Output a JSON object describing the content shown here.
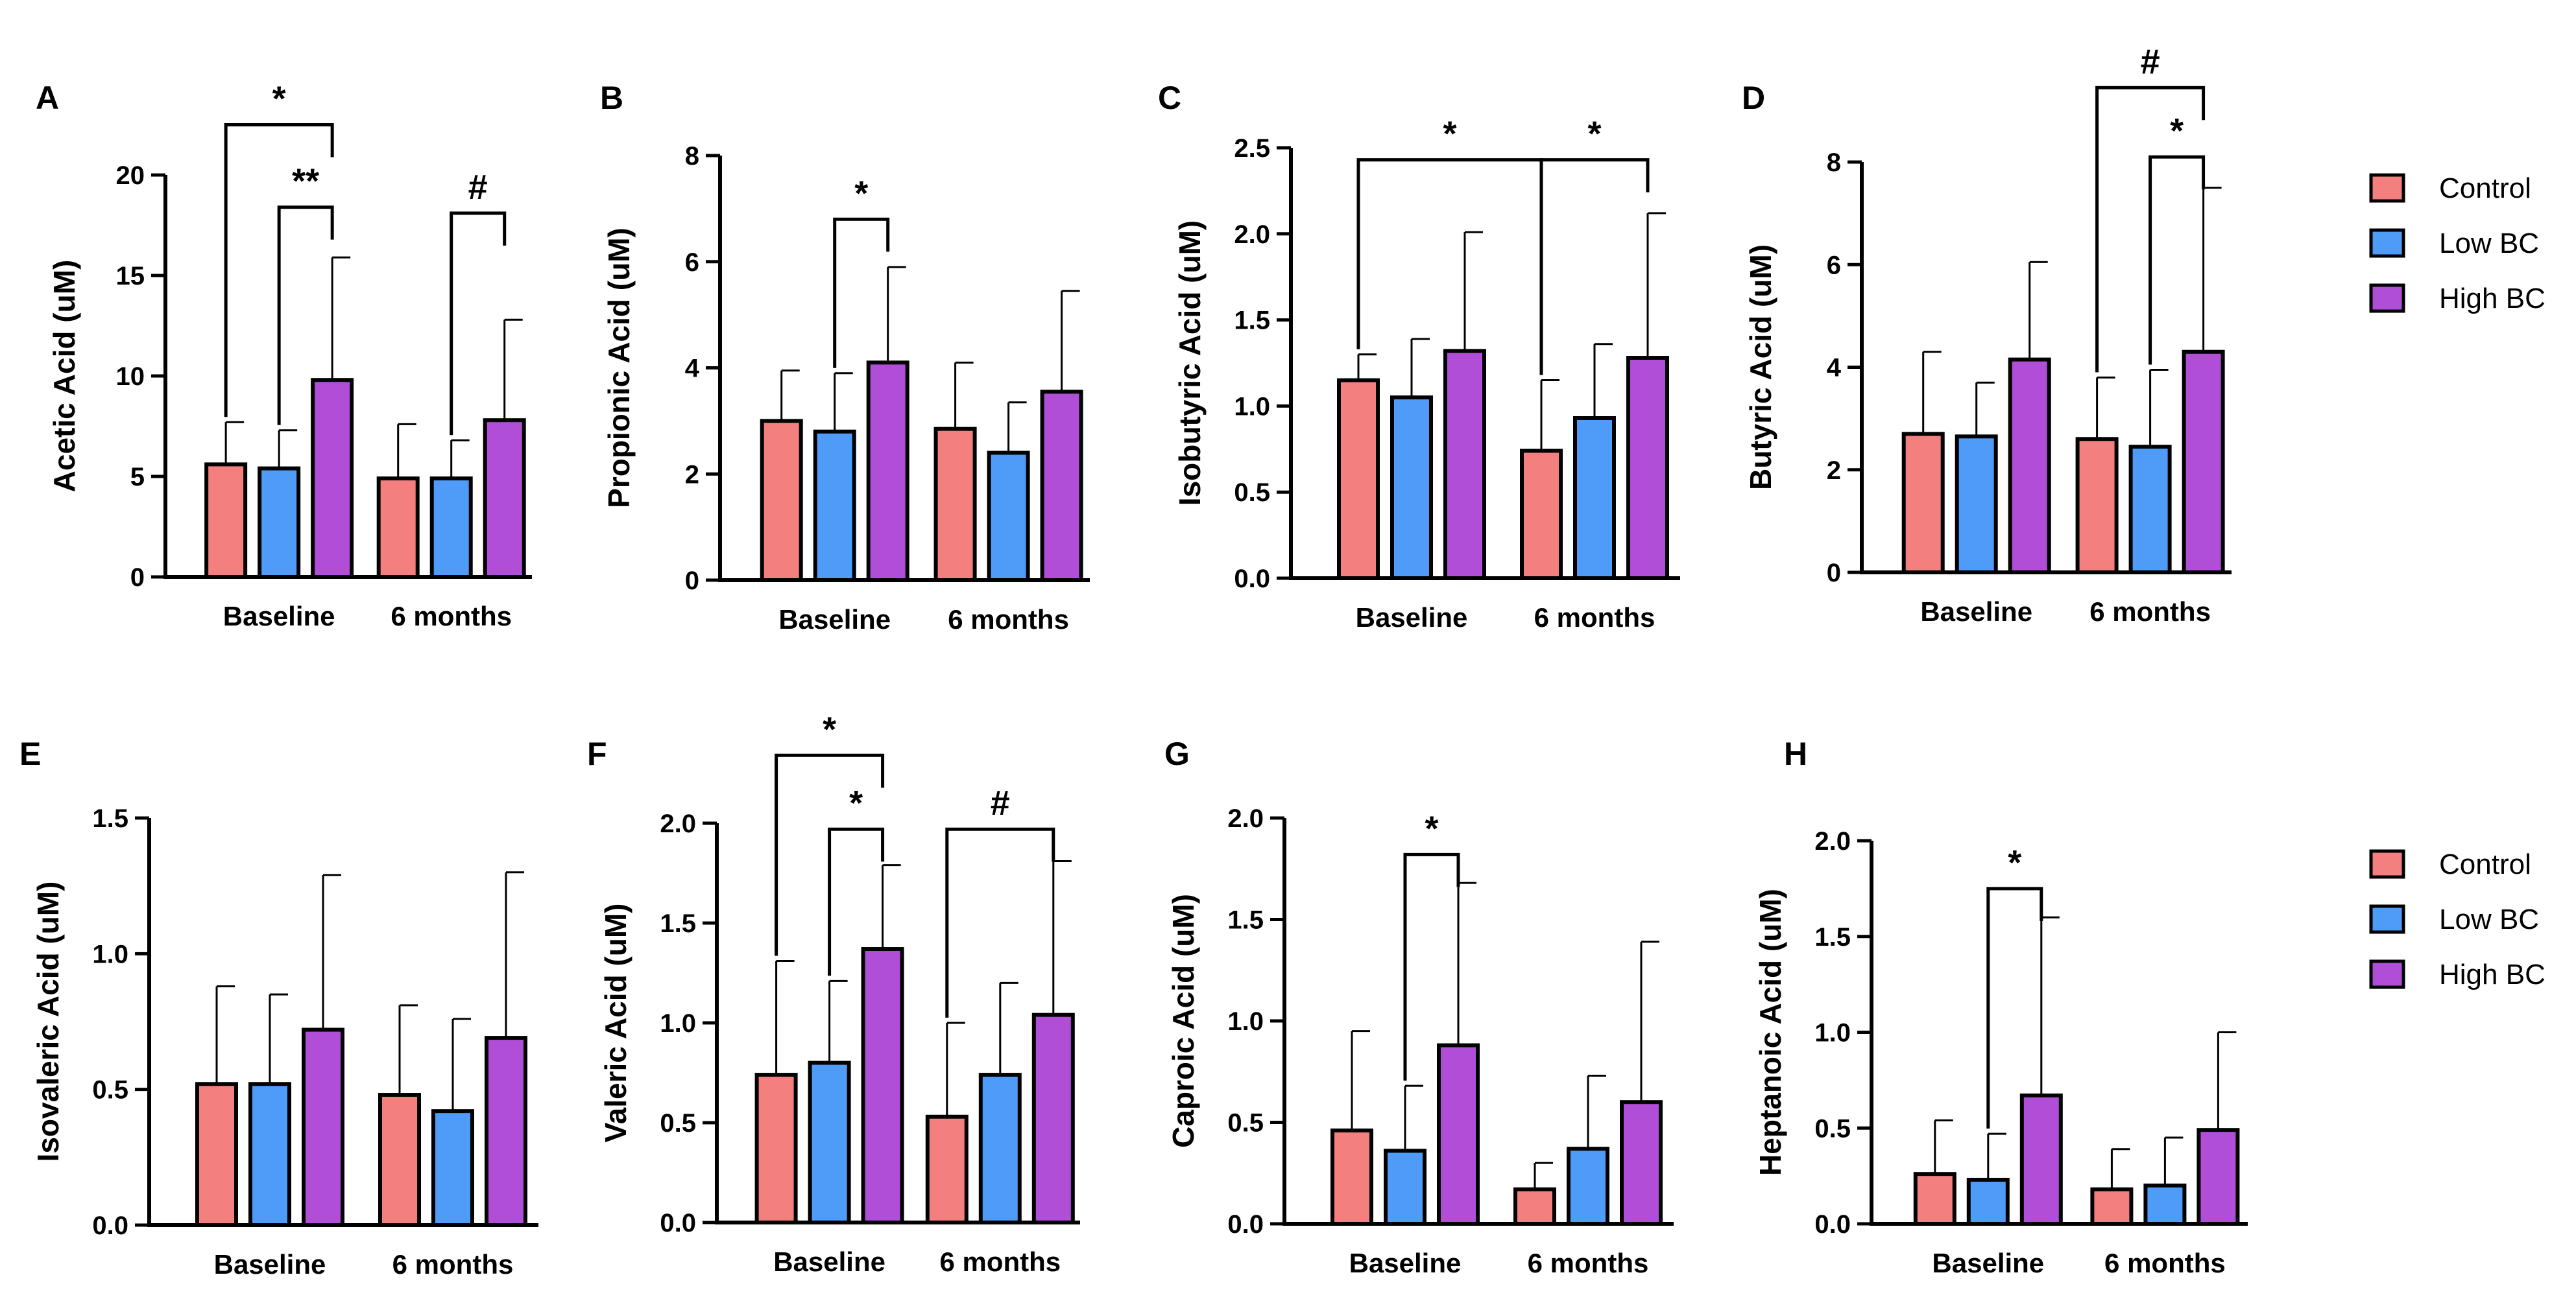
{
  "legend_groups": [
    "Control",
    "Low BC",
    "High BC"
  ],
  "colors": {
    "Control": "#f47f7f",
    "Low BC": "#4e9cf8",
    "High BC": "#b04ed8",
    "axis": "#000000"
  },
  "chart_data": [
    {
      "type": "bar",
      "panel": "A",
      "ylabel": "Acetic Acid (uM)",
      "categories": [
        "Baseline",
        "6 months"
      ],
      "ylim": [
        0,
        20
      ],
      "yticks": [
        0,
        5,
        10,
        15,
        20
      ],
      "ytick_labels": [
        "0",
        "5",
        "10",
        "15",
        "20"
      ],
      "series": [
        {
          "name": "Control",
          "values": [
            5.6,
            4.9
          ],
          "error": [
            2.1,
            2.7
          ]
        },
        {
          "name": "Low BC",
          "values": [
            5.4,
            4.9
          ],
          "error": [
            1.9,
            1.9
          ]
        },
        {
          "name": "High BC",
          "values": [
            9.8,
            7.8
          ],
          "error": [
            6.1,
            5.0
          ]
        }
      ],
      "annotations": [
        {
          "label": "*",
          "from": [
            0,
            0
          ],
          "to": [
            0,
            2
          ],
          "level": 22.5
        },
        {
          "label": "**",
          "from": [
            0,
            1
          ],
          "to": [
            0,
            2
          ],
          "level": 18.4
        },
        {
          "label": "#",
          "from": [
            1,
            1
          ],
          "to": [
            1,
            2
          ],
          "level": 18.1
        }
      ]
    },
    {
      "type": "bar",
      "panel": "B",
      "ylabel": "Propionic Acid (uM)",
      "categories": [
        "Baseline",
        "6 months"
      ],
      "ylim": [
        0,
        8
      ],
      "yticks": [
        0,
        2,
        4,
        6,
        8
      ],
      "ytick_labels": [
        "0",
        "2",
        "4",
        "6",
        "8"
      ],
      "series": [
        {
          "name": "Control",
          "values": [
            3.0,
            2.85
          ],
          "error": [
            0.95,
            1.25
          ]
        },
        {
          "name": "Low BC",
          "values": [
            2.8,
            2.4
          ],
          "error": [
            1.1,
            0.95
          ]
        },
        {
          "name": "High BC",
          "values": [
            4.1,
            3.55
          ],
          "error": [
            1.8,
            1.9
          ]
        }
      ],
      "annotations": [
        {
          "label": "*",
          "from": [
            0,
            1
          ],
          "to": [
            0,
            2
          ],
          "level": 6.8
        }
      ]
    },
    {
      "type": "bar",
      "panel": "C",
      "ylabel": "Isobutyric Acid (uM)",
      "categories": [
        "Baseline",
        "6 months"
      ],
      "ylim": [
        0,
        2.5
      ],
      "yticks": [
        0,
        0.5,
        1,
        1.5,
        2,
        2.5
      ],
      "ytick_labels": [
        "0.0",
        "0.5",
        "1.0",
        "1.5",
        "2.0",
        "2.5"
      ],
      "series": [
        {
          "name": "Control",
          "values": [
            1.15,
            0.74
          ],
          "error": [
            0.15,
            0.41
          ]
        },
        {
          "name": "Low BC",
          "values": [
            1.05,
            0.93
          ],
          "error": [
            0.34,
            0.43
          ]
        },
        {
          "name": "High BC",
          "values": [
            1.32,
            1.28
          ],
          "error": [
            0.69,
            0.84
          ]
        }
      ],
      "annotations": [
        {
          "label": "*",
          "from": [
            0,
            0
          ],
          "to": [
            1,
            0
          ],
          "level": 2.43
        },
        {
          "label": "*",
          "from": [
            1,
            0
          ],
          "to": [
            1,
            2
          ],
          "level": 2.43
        }
      ]
    },
    {
      "type": "bar",
      "panel": "D",
      "ylabel": "Butyric Acid (uM)",
      "categories": [
        "Baseline",
        "6 months"
      ],
      "ylim": [
        0,
        8
      ],
      "yticks": [
        0,
        2,
        4,
        6,
        8
      ],
      "ytick_labels": [
        "0",
        "2",
        "4",
        "6",
        "8"
      ],
      "series": [
        {
          "name": "Control",
          "values": [
            2.7,
            2.6
          ],
          "error": [
            1.6,
            1.2
          ]
        },
        {
          "name": "Low BC",
          "values": [
            2.65,
            2.45
          ],
          "error": [
            1.05,
            1.5
          ]
        },
        {
          "name": "High BC",
          "values": [
            4.15,
            4.3
          ],
          "error": [
            1.9,
            3.2
          ]
        }
      ],
      "annotations": [
        {
          "label": "#",
          "from": [
            1,
            0
          ],
          "to": [
            1,
            2
          ],
          "level": 9.45
        },
        {
          "label": "*",
          "from": [
            1,
            1
          ],
          "to": [
            1,
            2
          ],
          "level": 8.1
        }
      ]
    },
    {
      "type": "bar",
      "panel": "E",
      "ylabel": "Isovaleric Acid (uM)",
      "categories": [
        "Baseline",
        "6 months"
      ],
      "ylim": [
        0,
        1.5
      ],
      "yticks": [
        0,
        0.5,
        1,
        1.5
      ],
      "ytick_labels": [
        "0.0",
        "0.5",
        "1.0",
        "1.5"
      ],
      "series": [
        {
          "name": "Control",
          "values": [
            0.52,
            0.48
          ],
          "error": [
            0.36,
            0.33
          ]
        },
        {
          "name": "Low BC",
          "values": [
            0.52,
            0.42
          ],
          "error": [
            0.33,
            0.34
          ]
        },
        {
          "name": "High BC",
          "values": [
            0.72,
            0.69
          ],
          "error": [
            0.57,
            0.61
          ]
        }
      ],
      "annotations": []
    },
    {
      "type": "bar",
      "panel": "F",
      "ylabel": "Valeric Acid (uM)",
      "categories": [
        "Baseline",
        "6 months"
      ],
      "ylim": [
        0,
        2.0
      ],
      "yticks": [
        0,
        0.5,
        1,
        1.5,
        2
      ],
      "ytick_labels": [
        "0.0",
        "0.5",
        "1.0",
        "1.5",
        "2.0"
      ],
      "series": [
        {
          "name": "Control",
          "values": [
            0.74,
            0.53
          ],
          "error": [
            0.57,
            0.47
          ]
        },
        {
          "name": "Low BC",
          "values": [
            0.8,
            0.74
          ],
          "error": [
            0.41,
            0.46
          ]
        },
        {
          "name": "High BC",
          "values": [
            1.37,
            1.04
          ],
          "error": [
            0.42,
            0.77
          ]
        }
      ],
      "annotations": [
        {
          "label": "*",
          "from": [
            0,
            0
          ],
          "to": [
            0,
            2
          ],
          "level": 2.34
        },
        {
          "label": "*",
          "from": [
            0,
            1
          ],
          "to": [
            0,
            2
          ],
          "level": 1.97
        },
        {
          "label": "#",
          "from": [
            1,
            0
          ],
          "to": [
            1,
            2
          ],
          "level": 1.97
        }
      ]
    },
    {
      "type": "bar",
      "panel": "G",
      "ylabel": "Caproic Acid (uM)",
      "categories": [
        "Baseline",
        "6 months"
      ],
      "ylim": [
        0,
        2.0
      ],
      "yticks": [
        0,
        0.5,
        1,
        1.5,
        2
      ],
      "ytick_labels": [
        "0.0",
        "0.5",
        "1.0",
        "1.5",
        "2.0"
      ],
      "series": [
        {
          "name": "Control",
          "values": [
            0.46,
            0.17
          ],
          "error": [
            0.49,
            0.13
          ]
        },
        {
          "name": "Low BC",
          "values": [
            0.36,
            0.37
          ],
          "error": [
            0.32,
            0.36
          ]
        },
        {
          "name": "High BC",
          "values": [
            0.88,
            0.6
          ],
          "error": [
            0.8,
            0.79
          ]
        }
      ],
      "annotations": [
        {
          "label": "*",
          "from": [
            0,
            1
          ],
          "to": [
            0,
            2
          ],
          "level": 1.82
        }
      ]
    },
    {
      "type": "bar",
      "panel": "H",
      "ylabel": "Heptanoic Acid (uM)",
      "categories": [
        "Baseline",
        "6 months"
      ],
      "ylim": [
        0,
        2.0
      ],
      "yticks": [
        0,
        0.5,
        1,
        1.5,
        2
      ],
      "ytick_labels": [
        "0.0",
        "0.5",
        "1.0",
        "1.5",
        "2.0"
      ],
      "series": [
        {
          "name": "Control",
          "values": [
            0.26,
            0.18
          ],
          "error": [
            0.28,
            0.21
          ]
        },
        {
          "name": "Low BC",
          "values": [
            0.23,
            0.2
          ],
          "error": [
            0.24,
            0.25
          ]
        },
        {
          "name": "High BC",
          "values": [
            0.67,
            0.49
          ],
          "error": [
            0.93,
            0.51
          ]
        }
      ],
      "annotations": [
        {
          "label": "*",
          "from": [
            0,
            1
          ],
          "to": [
            0,
            2
          ],
          "level": 1.75
        }
      ]
    }
  ]
}
